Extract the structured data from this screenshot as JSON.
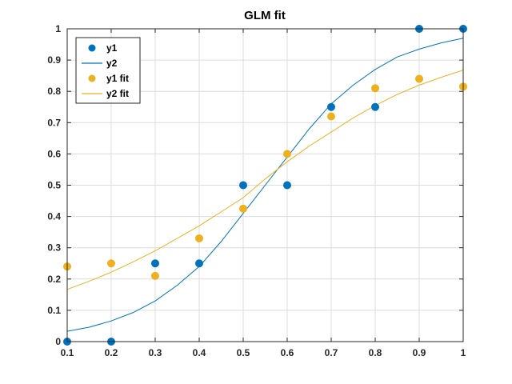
{
  "chart_data": {
    "type": "scatter",
    "title": "GLM fit",
    "xlabel": "",
    "ylabel": "",
    "xlim": [
      0.1,
      1
    ],
    "ylim": [
      0,
      1
    ],
    "xticks": [
      "0.1",
      "0.2",
      "0.3",
      "0.4",
      "0.5",
      "0.6",
      "0.7",
      "0.8",
      "0.9",
      "1"
    ],
    "yticks": [
      "0",
      "0.1",
      "0.2",
      "0.3",
      "0.4",
      "0.5",
      "0.6",
      "0.7",
      "0.8",
      "0.9",
      "1"
    ],
    "grid": true,
    "legend_position": "top-left",
    "series": [
      {
        "name": "y1",
        "kind": "markers",
        "color": "#0072BD",
        "x": [
          0.1,
          0.2,
          0.3,
          0.4,
          0.5,
          0.6,
          0.7,
          0.8,
          0.9,
          1.0
        ],
        "y": [
          0.0,
          0.0,
          0.25,
          0.25,
          0.5,
          0.5,
          0.75,
          0.75,
          1.0,
          1.0
        ]
      },
      {
        "name": "y2",
        "kind": "line",
        "color": "#0072BD",
        "x": [
          0.1,
          0.15,
          0.2,
          0.25,
          0.3,
          0.35,
          0.4,
          0.45,
          0.5,
          0.55,
          0.6,
          0.65,
          0.7,
          0.75,
          0.8,
          0.85,
          0.9,
          0.95,
          1.0
        ],
        "y": [
          0.033,
          0.046,
          0.066,
          0.093,
          0.13,
          0.18,
          0.24,
          0.32,
          0.41,
          0.5,
          0.59,
          0.68,
          0.76,
          0.82,
          0.87,
          0.91,
          0.935,
          0.955,
          0.97
        ]
      },
      {
        "name": "y1 fit",
        "kind": "markers",
        "color": "#EDB120",
        "x": [
          0.1,
          0.2,
          0.3,
          0.4,
          0.5,
          0.6,
          0.7,
          0.8,
          0.9,
          1.0
        ],
        "y": [
          0.24,
          0.25,
          0.21,
          0.33,
          0.425,
          0.6,
          0.72,
          0.81,
          0.84,
          0.815
        ]
      },
      {
        "name": "y2 fit",
        "kind": "line",
        "color": "#EDB120",
        "x": [
          0.1,
          0.15,
          0.2,
          0.25,
          0.3,
          0.35,
          0.4,
          0.45,
          0.5,
          0.55,
          0.6,
          0.65,
          0.7,
          0.75,
          0.8,
          0.85,
          0.9,
          0.95,
          1.0
        ],
        "y": [
          0.167,
          0.193,
          0.222,
          0.255,
          0.29,
          0.33,
          0.37,
          0.415,
          0.46,
          0.52,
          0.575,
          0.625,
          0.67,
          0.715,
          0.755,
          0.79,
          0.82,
          0.845,
          0.868
        ]
      }
    ]
  }
}
